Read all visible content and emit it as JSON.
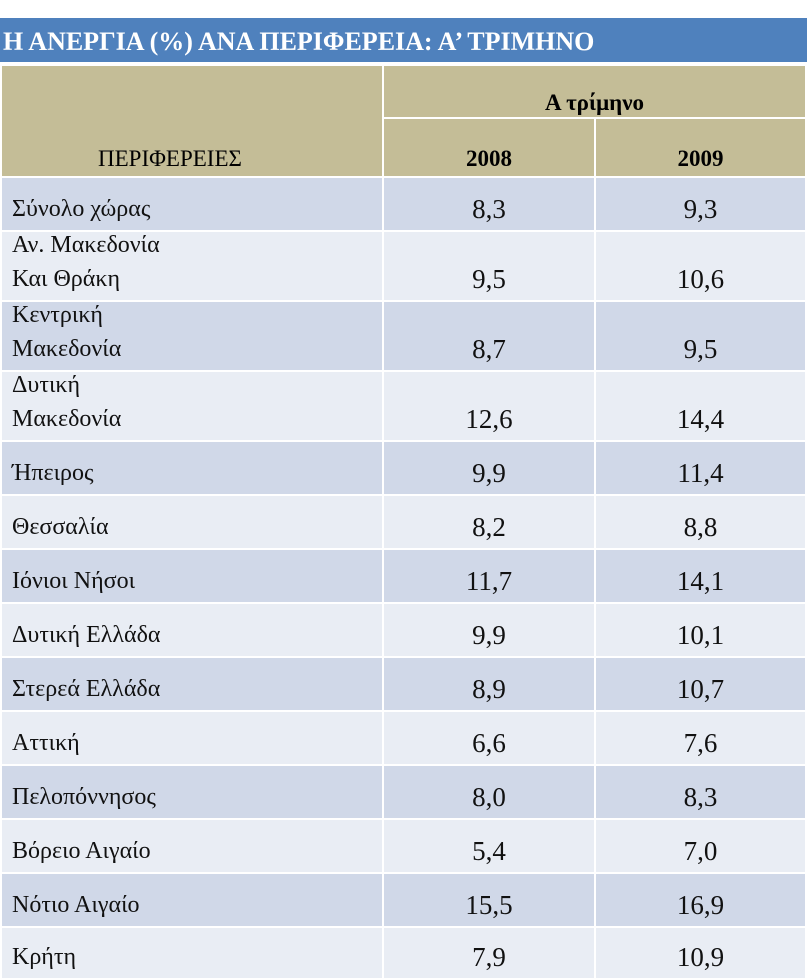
{
  "title": "Η ΑΝΕΡΓΙΑ (%) ΑΝΑ ΠΕΡΙΦΕΡΕΙΑ: Α’ ΤΡΙΜΗΝΟ",
  "header": {
    "region_label": "ΠΕΡΙΦΕΡΕΙΕΣ",
    "group_label": "Α τρίμηνο",
    "years": [
      "2008",
      "2009"
    ]
  },
  "colors": {
    "title_bar": "#4f81bd",
    "header": "#c4bd97",
    "row_dark": "#d0d8e8",
    "row_light": "#e9edf4"
  },
  "chart_data": {
    "type": "table",
    "title": "Η ΑΝΕΡΓΙΑ (%) ΑΝΑ ΠΕΡΙΦΕΡΕΙΑ: Α’ ΤΡΙΜΗΝΟ",
    "columns": [
      "ΠΕΡΙΦΕΡΕΙΕΣ",
      "2008",
      "2009"
    ],
    "rows": [
      {
        "region": [
          "Σύνολο χώρας"
        ],
        "v2008": "8,3",
        "v2009": "9,3"
      },
      {
        "region": [
          "Αν. Μακεδονία",
          "Και Θράκη"
        ],
        "v2008": "9,5",
        "v2009": "10,6"
      },
      {
        "region": [
          "Κεντρική",
          "Μακεδονία"
        ],
        "v2008": "8,7",
        "v2009": "9,5"
      },
      {
        "region": [
          "Δυτική",
          "Μακεδονία"
        ],
        "v2008": "12,6",
        "v2009": "14,4"
      },
      {
        "region": [
          "Ήπειρος"
        ],
        "v2008": "9,9",
        "v2009": "11,4"
      },
      {
        "region": [
          "Θεσσαλία"
        ],
        "v2008": "8,2",
        "v2009": "8,8"
      },
      {
        "region": [
          "Ιόνιοι Νήσοι"
        ],
        "v2008": "11,7",
        "v2009": "14,1"
      },
      {
        "region": [
          "Δυτική Ελλάδα"
        ],
        "v2008": "9,9",
        "v2009": "10,1"
      },
      {
        "region": [
          "Στερεά Ελλάδα"
        ],
        "v2008": "8,9",
        "v2009": "10,7"
      },
      {
        "region": [
          "Αττική"
        ],
        "v2008": "6,6",
        "v2009": "7,6"
      },
      {
        "region": [
          "Πελοπόννησος"
        ],
        "v2008": "8,0",
        "v2009": "8,3"
      },
      {
        "region": [
          "Βόρειο Αιγαίο"
        ],
        "v2008": "5,4",
        "v2009": "7,0"
      },
      {
        "region": [
          "Νότιο Αιγαίο"
        ],
        "v2008": "15,5",
        "v2009": "16,9"
      },
      {
        "region": [
          "Κρήτη"
        ],
        "v2008": "7,9",
        "v2009": "10,9"
      }
    ]
  }
}
